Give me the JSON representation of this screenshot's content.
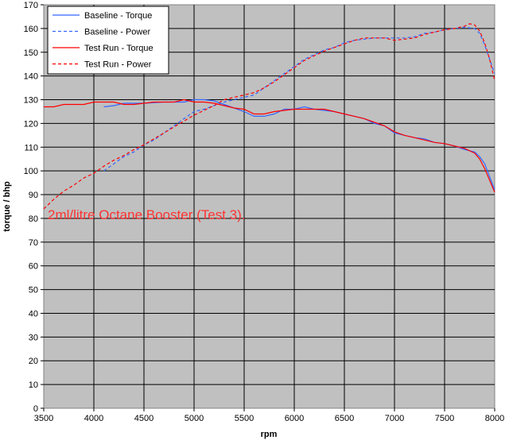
{
  "chart_data": {
    "type": "line",
    "title": "",
    "xlabel": "rpm",
    "ylabel": "torque / bhp",
    "xlim": [
      3500,
      8000
    ],
    "ylim": [
      0,
      170
    ],
    "xticks": [
      3500,
      4000,
      4500,
      5000,
      5500,
      6000,
      6500,
      7000,
      7500,
      8000
    ],
    "yticks": [
      0,
      10,
      20,
      30,
      40,
      50,
      60,
      70,
      80,
      90,
      100,
      110,
      120,
      130,
      140,
      150,
      160,
      170
    ],
    "grid": true,
    "plot_background": "#c0c0c0",
    "legend_position": "top-left",
    "annotation": {
      "text": "2ml/litre Octane Booster (Test 3).",
      "color": "#ff3333"
    },
    "series": [
      {
        "name": "Baseline - Torque",
        "color": "#3366ff",
        "dash": "solid",
        "x": [
          4100,
          4200,
          4300,
          4500,
          4700,
          4800,
          4900,
          5000,
          5100,
          5200,
          5300,
          5400,
          5500,
          5600,
          5700,
          5800,
          5900,
          6000,
          6100,
          6200,
          6300,
          6400,
          6500,
          6600,
          6700,
          6800,
          6900,
          7000,
          7100,
          7200,
          7300,
          7400,
          7500,
          7600,
          7700,
          7800,
          7850,
          7900,
          8000
        ],
        "y": [
          127,
          127.5,
          128.5,
          128.5,
          129,
          129,
          129,
          130,
          130,
          129.5,
          128,
          126.5,
          125,
          123,
          123,
          124,
          126,
          126,
          127,
          126,
          125.5,
          125,
          124,
          123,
          122,
          120,
          119,
          116,
          115,
          114,
          113.5,
          112,
          111.5,
          110.5,
          109,
          108,
          106,
          103,
          92
        ]
      },
      {
        "name": "Baseline - Power",
        "color": "#3366ff",
        "dash": "dashed",
        "x": [
          4100,
          4200,
          4300,
          4400,
          4500,
          4600,
          4700,
          4800,
          4900,
          5000,
          5100,
          5200,
          5300,
          5400,
          5500,
          5600,
          5700,
          5800,
          5900,
          6000,
          6100,
          6200,
          6300,
          6400,
          6500,
          6600,
          6700,
          6800,
          6900,
          7000,
          7100,
          7200,
          7300,
          7400,
          7500,
          7600,
          7700,
          7800,
          7850,
          7900,
          8000
        ],
        "y": [
          100,
          103,
          106,
          108,
          111,
          113,
          116,
          119,
          122,
          125,
          126,
          127.5,
          129,
          130,
          131,
          132,
          135,
          138,
          141,
          144,
          147,
          149,
          151,
          152,
          154,
          155,
          155.5,
          156,
          156,
          156,
          156,
          156.5,
          158,
          158.5,
          159.5,
          160,
          160.5,
          160,
          158,
          153,
          141
        ]
      },
      {
        "name": "Test Run - Torque",
        "color": "#ff0000",
        "dash": "solid",
        "x": [
          3500,
          3600,
          3700,
          3800,
          3900,
          4000,
          4100,
          4200,
          4300,
          4400,
          4500,
          4600,
          4700,
          4800,
          4900,
          5000,
          5100,
          5200,
          5300,
          5400,
          5500,
          5600,
          5700,
          5800,
          5900,
          6000,
          6100,
          6200,
          6300,
          6400,
          6500,
          6600,
          6700,
          6800,
          6900,
          7000,
          7100,
          7200,
          7300,
          7400,
          7500,
          7600,
          7700,
          7800,
          7850,
          7900,
          8000
        ],
        "y": [
          127,
          127,
          128,
          128,
          128,
          129,
          129,
          129,
          128,
          128,
          128.5,
          129,
          129,
          129,
          130,
          129,
          129,
          128.5,
          127.5,
          126.5,
          126,
          124,
          124,
          125,
          125.5,
          126,
          126,
          126,
          126,
          125,
          124,
          123,
          122,
          120.5,
          119,
          116.5,
          115,
          114,
          113,
          112,
          111.5,
          110.5,
          109.5,
          107.5,
          105,
          101,
          91
        ]
      },
      {
        "name": "Test Run - Power",
        "color": "#ff0000",
        "dash": "dashed",
        "x": [
          3500,
          3600,
          3700,
          3800,
          3900,
          4000,
          4100,
          4200,
          4300,
          4400,
          4500,
          4600,
          4700,
          4800,
          4900,
          5000,
          5100,
          5200,
          5300,
          5400,
          5500,
          5600,
          5700,
          5800,
          5900,
          6000,
          6100,
          6200,
          6300,
          6400,
          6500,
          6600,
          6700,
          6800,
          6900,
          7000,
          7100,
          7200,
          7300,
          7400,
          7500,
          7600,
          7700,
          7750,
          7800,
          7850,
          7900,
          7950,
          8000
        ],
        "y": [
          84,
          88,
          91.5,
          94,
          97,
          99,
          102,
          104.5,
          106.5,
          109,
          111,
          113.5,
          116,
          118.5,
          121,
          123.5,
          125.5,
          127.5,
          130,
          131,
          132,
          133,
          135,
          137.5,
          140.5,
          143.5,
          146.5,
          148.5,
          150.5,
          152,
          153.5,
          155,
          156,
          156,
          156,
          155,
          155.5,
          156,
          157.5,
          158.5,
          159.5,
          160,
          161,
          162,
          161.5,
          159,
          154,
          147,
          138
        ]
      }
    ]
  }
}
